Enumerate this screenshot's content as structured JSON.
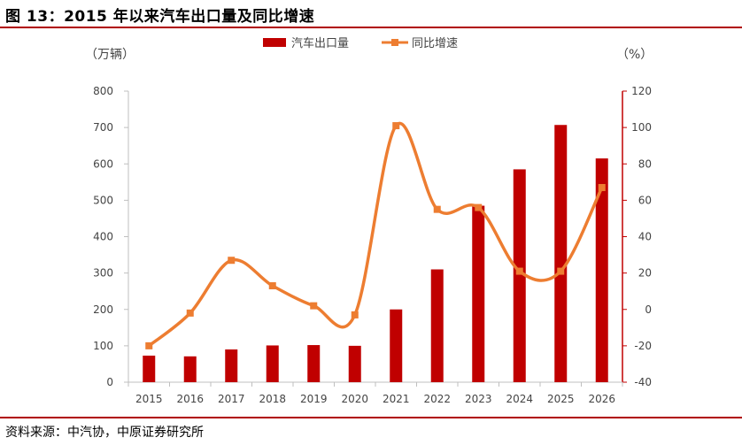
{
  "figure": {
    "title": "图 13：2015 年以来汽车出口量及同比增速",
    "source": "资料来源：中汽协，中原证券研究所"
  },
  "chart_data": {
    "type": "bar",
    "categories": [
      "2015",
      "2016",
      "2017",
      "2018",
      "2019",
      "2020",
      "2021",
      "2022",
      "2023",
      "2024",
      "2025",
      "2026"
    ],
    "left_unit": "（万辆）",
    "right_unit": "（%）",
    "left_ylim": [
      0,
      800
    ],
    "left_ticks": [
      "0",
      "100",
      "200",
      "300",
      "400",
      "500",
      "600",
      "700",
      "800"
    ],
    "right_ylim": [
      -40,
      120
    ],
    "right_ticks": [
      "-40",
      "-20",
      "0",
      "20",
      "40",
      "60",
      "80",
      "100",
      "120"
    ],
    "grid": false,
    "legend_position": "top",
    "series": [
      {
        "name": "汽车出口量",
        "type": "bar",
        "axis": "left",
        "color": "#c00000",
        "values": [
          73,
          71,
          90,
          101,
          102,
          100,
          200,
          310,
          485,
          585,
          707,
          615
        ]
      },
      {
        "name": "同比增速",
        "type": "line",
        "axis": "right",
        "color": "#ed7d31",
        "smooth": true,
        "marker": "square",
        "values": [
          -20,
          -2,
          27,
          13,
          2,
          -3,
          101,
          55,
          56,
          21,
          21,
          67
        ]
      }
    ]
  }
}
